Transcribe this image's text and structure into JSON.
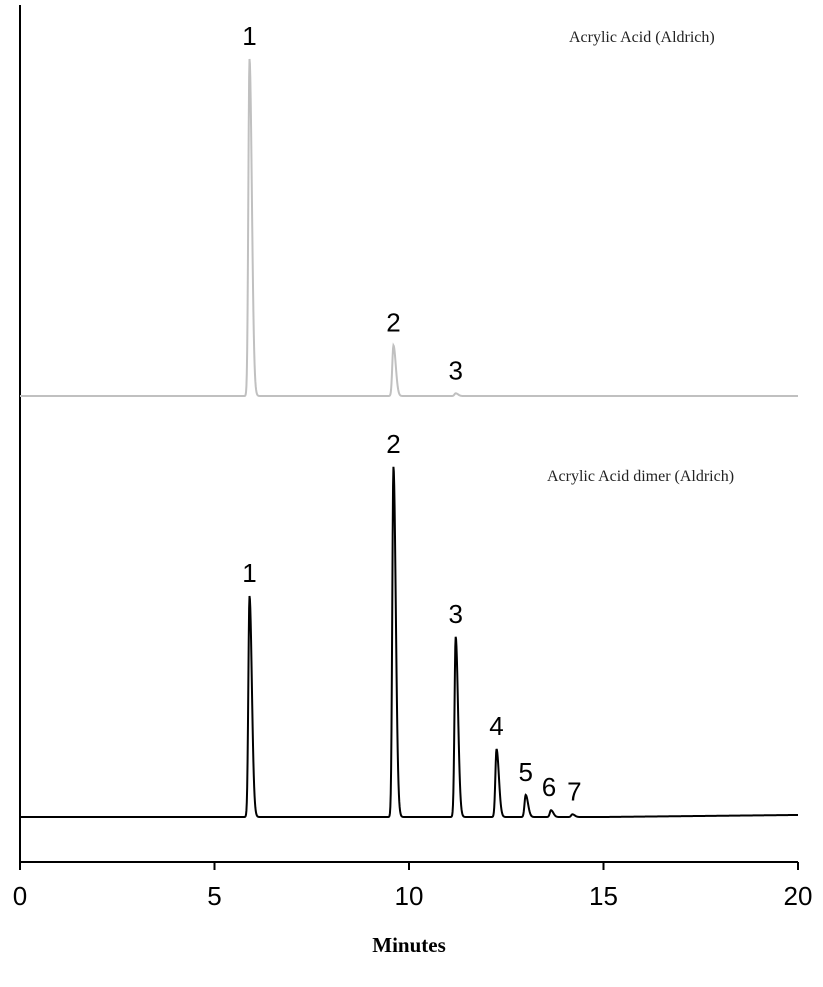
{
  "chart_data": {
    "type": "line",
    "title": "",
    "xlabel": "Minutes",
    "ylabel": "",
    "xlim": [
      0,
      20
    ],
    "x_ticks": [
      "0",
      "5",
      "10",
      "15",
      "20"
    ],
    "series": [
      {
        "name": "Acrylic Acid (Aldrich)",
        "color": "#c0c0c0",
        "baseline": 0.0,
        "peaks": [
          {
            "label": "1",
            "time": 5.9,
            "height": 1.0
          },
          {
            "label": "2",
            "time": 9.6,
            "height": 0.15
          },
          {
            "label": "3",
            "time": 11.2,
            "height": 0.008
          }
        ]
      },
      {
        "name": "Acrylic Acid dimer (Aldrich)",
        "color": "#000000",
        "baseline": 0.0,
        "peaks": [
          {
            "label": "1",
            "time": 5.9,
            "height": 0.65
          },
          {
            "label": "2",
            "time": 9.6,
            "height": 1.03
          },
          {
            "label": "3",
            "time": 11.2,
            "height": 0.53
          },
          {
            "label": "4",
            "time": 12.25,
            "height": 0.2
          },
          {
            "label": "5",
            "time": 13.0,
            "height": 0.065
          },
          {
            "label": "6",
            "time": 13.65,
            "height": 0.02
          },
          {
            "label": "7",
            "time": 14.2,
            "height": 0.008
          }
        ]
      }
    ]
  }
}
